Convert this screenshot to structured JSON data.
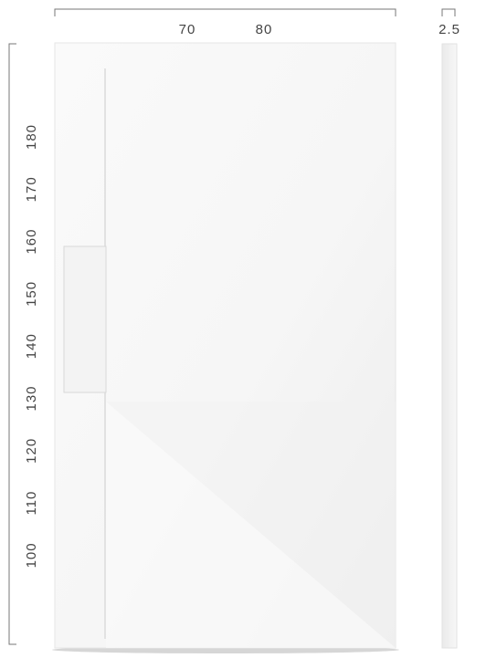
{
  "width_labels": [
    "70",
    "80"
  ],
  "thickness_label": "2.5",
  "length_labels": [
    "180",
    "170",
    "160",
    "150",
    "140",
    "130",
    "120",
    "110",
    "100"
  ]
}
